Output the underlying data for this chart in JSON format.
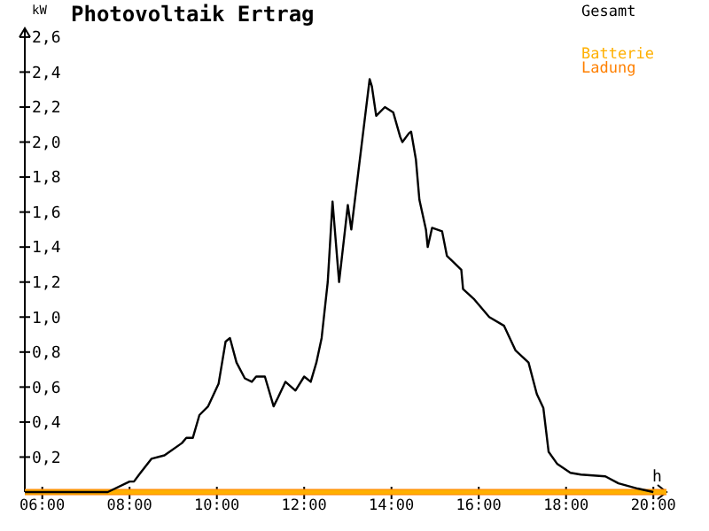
{
  "chart_data": {
    "type": "line",
    "title": "Photovoltaik Ertrag",
    "xlabel": "h",
    "ylabel": "kW",
    "xlim": [
      5.6,
      20.3
    ],
    "ylim": [
      0,
      2.65
    ],
    "xticks": [
      {
        "value": 6,
        "label": "06:00"
      },
      {
        "value": 8,
        "label": "08:00"
      },
      {
        "value": 10,
        "label": "10:00"
      },
      {
        "value": 12,
        "label": "12:00"
      },
      {
        "value": 14,
        "label": "14:00"
      },
      {
        "value": 16,
        "label": "16:00"
      },
      {
        "value": 18,
        "label": "18:00"
      },
      {
        "value": 20,
        "label": "20:00"
      }
    ],
    "yticks": [
      {
        "value": 0.2,
        "label": "0,2"
      },
      {
        "value": 0.4,
        "label": "0,4"
      },
      {
        "value": 0.6,
        "label": "0,6"
      },
      {
        "value": 0.8,
        "label": "0,8"
      },
      {
        "value": 1.0,
        "label": "1,0"
      },
      {
        "value": 1.2,
        "label": "1,2"
      },
      {
        "value": 1.4,
        "label": "1,4"
      },
      {
        "value": 1.6,
        "label": "1,6"
      },
      {
        "value": 1.8,
        "label": "1,8"
      },
      {
        "value": 2.0,
        "label": "2,0"
      },
      {
        "value": 2.2,
        "label": "2,2"
      },
      {
        "value": 2.4,
        "label": "2,4"
      },
      {
        "value": 2.6,
        "label": "2,6"
      }
    ],
    "grid": false,
    "legend": "top right",
    "marker": "none",
    "line_style": "solid",
    "series": [
      {
        "name": "Gesamt",
        "color": "#000000",
        "x": [
          5.6,
          7.5,
          8.0,
          8.1,
          8.25,
          8.5,
          8.8,
          9.2,
          9.3,
          9.45,
          9.6,
          9.8,
          10.04,
          10.2,
          10.3,
          10.45,
          10.64,
          10.8,
          10.9,
          11.1,
          11.3,
          11.4,
          11.57,
          11.8,
          12.0,
          12.15,
          12.28,
          12.4,
          12.54,
          12.65,
          12.8,
          13.0,
          13.08,
          13.5,
          13.55,
          13.65,
          13.85,
          14.04,
          14.2,
          14.25,
          14.4,
          14.45,
          14.56,
          14.64,
          14.79,
          14.83,
          14.93,
          15.16,
          15.27,
          15.6,
          15.64,
          15.9,
          16.24,
          16.58,
          16.84,
          17.14,
          17.33,
          17.48,
          17.6,
          17.8,
          18.1,
          18.34,
          18.9,
          19.2,
          19.64,
          20.0
        ],
        "values": [
          0,
          0,
          0.06,
          0.06,
          0.11,
          0.19,
          0.21,
          0.28,
          0.31,
          0.31,
          0.44,
          0.49,
          0.62,
          0.86,
          0.88,
          0.74,
          0.65,
          0.63,
          0.66,
          0.66,
          0.49,
          0.54,
          0.63,
          0.58,
          0.66,
          0.63,
          0.74,
          0.88,
          1.2,
          1.66,
          1.2,
          1.64,
          1.5,
          2.36,
          2.32,
          2.15,
          2.2,
          2.17,
          2.03,
          2.0,
          2.05,
          2.06,
          1.9,
          1.67,
          1.5,
          1.4,
          1.51,
          1.49,
          1.35,
          1.27,
          1.16,
          1.1,
          1.0,
          0.95,
          0.81,
          0.74,
          0.56,
          0.48,
          0.23,
          0.16,
          0.11,
          0.1,
          0.09,
          0.05,
          0.02,
          0
        ]
      },
      {
        "name": "Batterie",
        "color": "#ffb000",
        "x": [
          5.6,
          20.3
        ],
        "values": [
          0,
          0
        ]
      },
      {
        "name": "Ladung",
        "color": "#ff8000",
        "x": [
          5.6,
          20.3
        ],
        "values": [
          0,
          0
        ]
      }
    ]
  }
}
